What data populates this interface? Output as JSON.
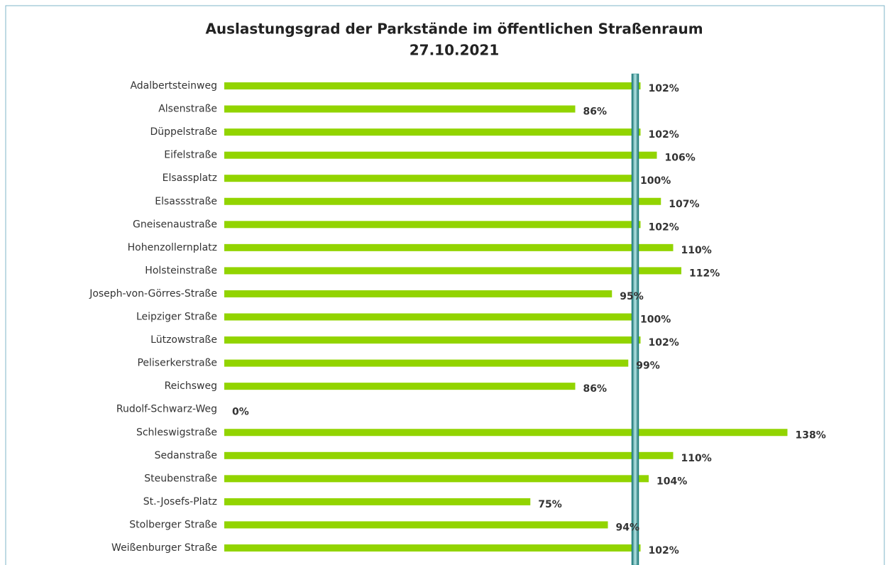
{
  "chart_data": {
    "type": "bar",
    "orientation": "horizontal",
    "title": "Auslastungsgrad der Parkstände im öffentlichen Straßenraum",
    "subtitle": "27.10.2021",
    "categories": [
      "Adalbertsteinweg",
      "Alsenstraße",
      "Düppelstraße",
      "Eifelstraße",
      "Elsassplatz",
      "Elsassstraße",
      "Gneisenaustraße",
      "Hohenzollernplatz",
      "Holsteinstraße",
      "Joseph-von-Görres-Straße",
      "Leipziger Straße",
      "Lützowstraße",
      "Peliserkerstraße",
      "Reichsweg",
      "Rudolf-Schwarz-Weg",
      "Schleswigstraße",
      "Sedanstraße",
      "Steubenstraße",
      "St.-Josefs-Platz",
      "Stolberger Straße",
      "Weißenburger Straße"
    ],
    "values": [
      102,
      86,
      102,
      106,
      100,
      107,
      102,
      110,
      112,
      95,
      100,
      102,
      99,
      86,
      0,
      138,
      110,
      104,
      75,
      94,
      102
    ],
    "value_labels": [
      "102%",
      "86%",
      "102%",
      "106%",
      "100%",
      "107%",
      "102%",
      "110%",
      "112%",
      "95%",
      "100%",
      "102%",
      "99%",
      "86%",
      "0%",
      "138%",
      "110%",
      "104%",
      "75%",
      "94%",
      "102%"
    ],
    "color": "#92d400",
    "reference_line": 100,
    "reference_color": "#1e8a8a",
    "xlim": [
      0,
      160
    ]
  }
}
